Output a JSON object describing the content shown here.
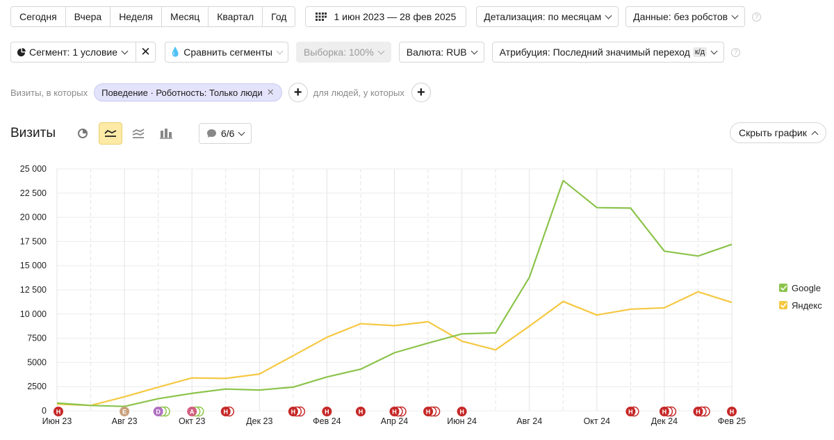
{
  "toolbar1": {
    "periods": [
      "Сегодня",
      "Вчера",
      "Неделя",
      "Месяц",
      "Квартал",
      "Год"
    ],
    "date_range": "1 июн 2023 — 28 фев 2025",
    "detail": "Детализация: по месяцам",
    "data": "Данные: без робстов",
    "help": "?"
  },
  "toolbar2": {
    "segment": "Сегмент: 1 условие",
    "compare": "Сравнить сегменты",
    "sample": "Выборка: 100%",
    "currency": "Валюта: RUB",
    "attribution": "Атрибуция: Последний значимый переход",
    "attribution_badge": "к/д",
    "help": "?"
  },
  "filters": {
    "visits_label": "Визиты, в которых",
    "chip": "Поведение · Роботность: Только люди",
    "people_label": "для людей, у которых"
  },
  "header": {
    "title": "Визиты",
    "annotations_count": "6/6",
    "hide_chart": "Скрыть график"
  },
  "colors": {
    "google": "#8bc34a",
    "yandex": "#f5c842",
    "marker": "#c62828"
  },
  "chart_data": {
    "type": "line",
    "x": [
      "Июн 23",
      "Июл 23",
      "Авг 23",
      "Сен 23",
      "Окт 23",
      "Ноя 23",
      "Дек 23",
      "Янв 24",
      "Фев 24",
      "Мар 24",
      "Апр 24",
      "Май 24",
      "Июн 24",
      "Июл 24",
      "Авг 24",
      "Сен 24",
      "Окт 24",
      "Ноя 24",
      "Дек 24",
      "Янв 25",
      "Фев 25"
    ],
    "xticks": [
      "Июн 23",
      "Авг 23",
      "Окт 23",
      "Дек 23",
      "Фев 24",
      "Апр 24",
      "Июн 24",
      "Авг 24",
      "Окт 24",
      "Дек 24",
      "Фев 25"
    ],
    "yticks": [
      "0",
      "2500",
      "5000",
      "7500",
      "10 000",
      "12 500",
      "15 000",
      "17 500",
      "20 000",
      "22 500",
      "25 000"
    ],
    "ylim": [
      0,
      25000
    ],
    "series": [
      {
        "name": "Google",
        "values": [
          800,
          550,
          450,
          1250,
          1800,
          2250,
          2150,
          2450,
          3500,
          4300,
          6000,
          7000,
          7950,
          8050,
          13800,
          23800,
          21000,
          20950,
          16500,
          16000,
          17200
        ]
      },
      {
        "name": "Яндекс",
        "values": [
          700,
          550,
          1450,
          2450,
          3400,
          3350,
          3800,
          5700,
          7600,
          9000,
          8800,
          9200,
          7200,
          6300,
          8750,
          11300,
          9900,
          10500,
          10650,
          12300,
          11200
        ]
      }
    ],
    "legend": "right",
    "event_markers": [
      "Н",
      "E",
      "D",
      "A",
      "Н",
      "Н",
      "Н",
      "Н",
      "Н",
      "Н",
      "Н",
      "Н",
      "Н",
      "Н",
      "Н"
    ]
  }
}
